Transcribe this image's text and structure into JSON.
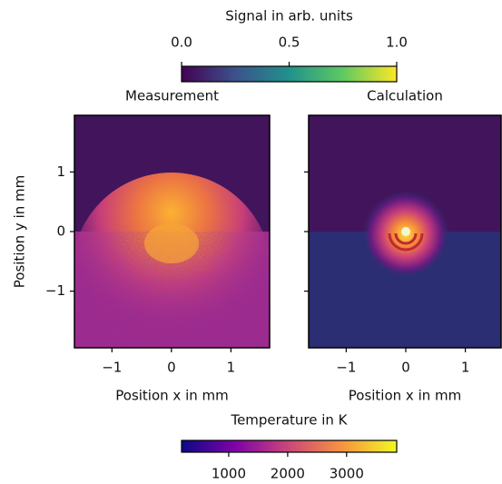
{
  "chart_data": [
    {
      "type": "heatmap",
      "title": "Measurement",
      "xlabel": "Position x in mm",
      "ylabel": "Position y in mm",
      "xlim": [
        -1.63,
        1.65
      ],
      "ylim": [
        -1.95,
        1.95
      ],
      "xticks": [
        {
          "value": -1,
          "label": "−1"
        },
        0,
        1
      ],
      "yticks": [
        {
          "value": -1,
          "label": "−1"
        },
        0,
        1
      ],
      "show_ytick_labels": true
    },
    {
      "type": "heatmap",
      "title": "Calculation",
      "xlabel": "Position x in mm",
      "xlim": [
        -1.63,
        1.6
      ],
      "ylim": [
        -1.95,
        1.95
      ],
      "xticks": [
        {
          "value": -1,
          "label": "−1"
        },
        0,
        1
      ],
      "yticks": [
        -1,
        0,
        1
      ],
      "show_ytick_labels": false
    },
    {
      "type": "colorbar",
      "label": "Signal in arb. units",
      "colormap": "viridis",
      "lim": [
        0,
        1
      ],
      "ticks": [
        {
          "value": 0,
          "label": "0.0"
        },
        {
          "value": 0.5,
          "label": "0.5"
        },
        {
          "value": 1,
          "label": "1.0"
        }
      ],
      "tick_side": "top"
    },
    {
      "type": "colorbar",
      "label": "Temperature in K",
      "colormap": "plasma",
      "lim": [
        200,
        3850
      ],
      "ticks": [
        1000,
        2000,
        3000
      ],
      "tick_side": "bottom"
    }
  ]
}
